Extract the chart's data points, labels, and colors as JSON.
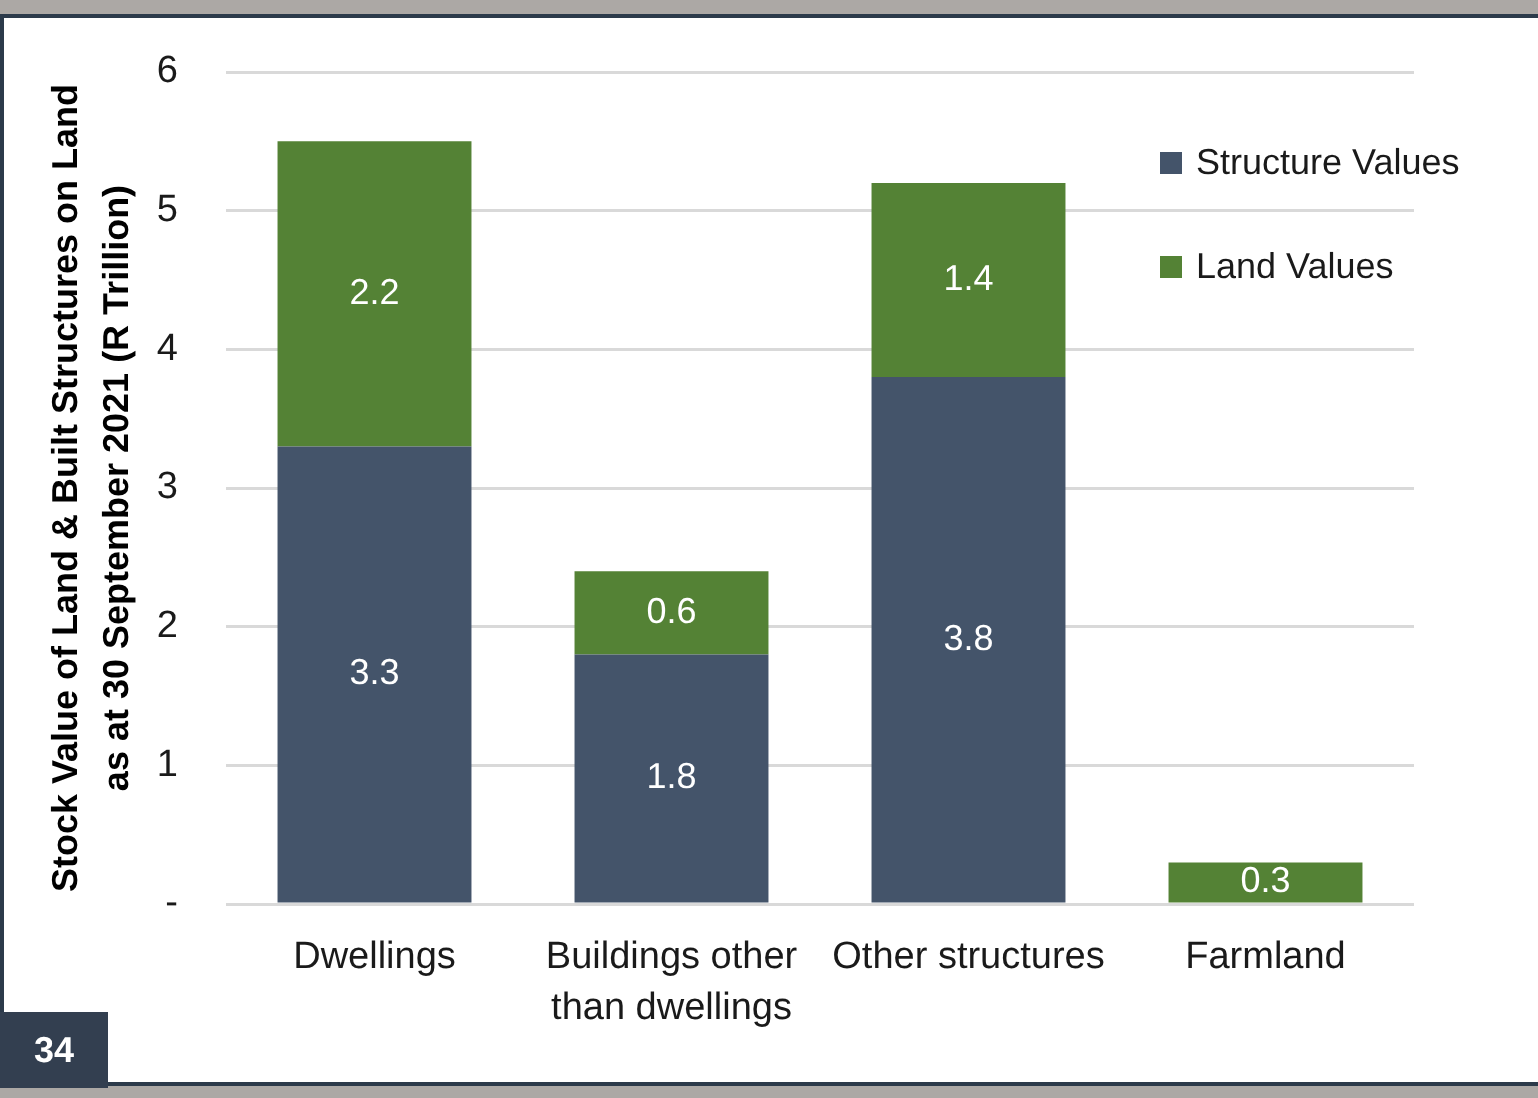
{
  "chart_data": {
    "type": "bar",
    "ylabel": "Stock Value of Land & Built Structures on Land as at 30 September 2021 (R Trillion)",
    "categories": [
      "Dwellings",
      "Buildings other than dwellings",
      "Other structures",
      "Farmland"
    ],
    "series": [
      {
        "name": "Structure Values",
        "color": "#44546a",
        "values": [
          3.3,
          1.8,
          3.8,
          null
        ]
      },
      {
        "name": "Land Values",
        "color": "#548235",
        "values": [
          2.2,
          0.6,
          1.4,
          0.3
        ]
      }
    ],
    "stacked": true,
    "ylim": [
      0,
      6
    ],
    "yticks": [
      {
        "value": 0,
        "label": "-"
      },
      1,
      2,
      3,
      4,
      5,
      6
    ],
    "grid": "y",
    "legend": "top right",
    "data_labels": true,
    "annotations": [
      "34"
    ]
  }
}
